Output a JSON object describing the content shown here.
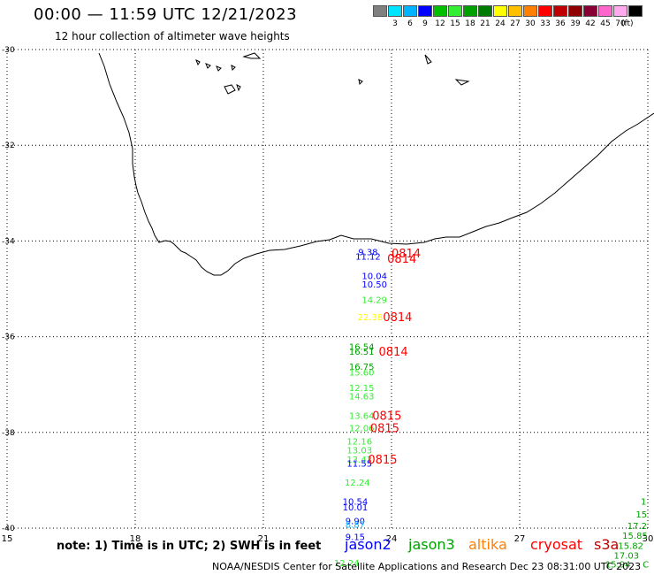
{
  "header": {
    "title": "00:00 — 11:59 UTC 12/21/2023",
    "subtitle": "12 hour collection of altimeter wave heights"
  },
  "legend": {
    "unit": "(ft)",
    "bins": [
      {
        "label": "",
        "color": "#808080"
      },
      {
        "label": "3",
        "color": "#00e5ff"
      },
      {
        "label": "6",
        "color": "#00b4ff"
      },
      {
        "label": "9",
        "color": "#0000ff"
      },
      {
        "label": "12",
        "color": "#00c000"
      },
      {
        "label": "15",
        "color": "#33ee33"
      },
      {
        "label": "18",
        "color": "#00a000"
      },
      {
        "label": "21",
        "color": "#007a00"
      },
      {
        "label": "24",
        "color": "#ffff00"
      },
      {
        "label": "27",
        "color": "#ffc000"
      },
      {
        "label": "30",
        "color": "#ff8000"
      },
      {
        "label": "33",
        "color": "#ff0000"
      },
      {
        "label": "36",
        "color": "#c00000"
      },
      {
        "label": "39",
        "color": "#900000"
      },
      {
        "label": "42",
        "color": "#880033"
      },
      {
        "label": "45",
        "color": "#ff66cc"
      },
      {
        "label": "70",
        "color": "#ffaaee"
      },
      {
        "label": "",
        "color": "#000000"
      }
    ]
  },
  "map": {
    "lon_range": [
      15,
      30
    ],
    "lat_range": [
      -40,
      -30
    ],
    "lat_labels": [
      {
        "lat": -30,
        "text": "-30"
      },
      {
        "lat": -32,
        "text": "-32"
      },
      {
        "lat": -34,
        "text": "-34"
      },
      {
        "lat": -36,
        "text": "-36"
      },
      {
        "lat": -38,
        "text": "-38"
      },
      {
        "lat": -40,
        "text": "-40"
      }
    ],
    "lon_labels": [
      {
        "lon": 15,
        "text": "15"
      },
      {
        "lon": 18,
        "text": "18"
      },
      {
        "lon": 21,
        "text": "21"
      },
      {
        "lon": 24,
        "text": "24"
      },
      {
        "lon": 27,
        "text": "27"
      },
      {
        "lon": 30,
        "text": "30"
      }
    ],
    "observations": [
      {
        "lon": 23.45,
        "lat": -34.22,
        "text": "9.38",
        "color": "#0000ff"
      },
      {
        "lon": 23.45,
        "lat": -34.32,
        "text": "11.12",
        "color": "#0000ff"
      },
      {
        "lon": 23.6,
        "lat": -34.72,
        "text": "10.04",
        "color": "#0000ff"
      },
      {
        "lon": 23.6,
        "lat": -34.9,
        "text": "10.50",
        "color": "#0000ff"
      },
      {
        "lon": 23.6,
        "lat": -35.22,
        "text": "14.29",
        "color": "#33ee33"
      },
      {
        "lon": 23.5,
        "lat": -35.58,
        "text": "22.38",
        "color": "#ffff00"
      },
      {
        "lon": 23.3,
        "lat": -36.2,
        "text": "16.54",
        "color": "#00a000"
      },
      {
        "lon": 23.3,
        "lat": -36.3,
        "text": "16.51",
        "color": "#00a000"
      },
      {
        "lon": 23.3,
        "lat": -36.62,
        "text": "16.75",
        "color": "#00a000"
      },
      {
        "lon": 23.3,
        "lat": -36.74,
        "text": "15.60",
        "color": "#33ee33"
      },
      {
        "lon": 23.3,
        "lat": -37.06,
        "text": "12.15",
        "color": "#33ee33"
      },
      {
        "lon": 23.3,
        "lat": -37.24,
        "text": "14.63",
        "color": "#33ee33"
      },
      {
        "lon": 23.3,
        "lat": -37.64,
        "text": "13.64",
        "color": "#33ee33"
      },
      {
        "lon": 23.3,
        "lat": -37.9,
        "text": "12.06",
        "color": "#33ee33"
      },
      {
        "lon": 23.25,
        "lat": -38.18,
        "text": "12.16",
        "color": "#33ee33"
      },
      {
        "lon": 23.25,
        "lat": -38.36,
        "text": "13.03",
        "color": "#33ee33"
      },
      {
        "lon": 23.25,
        "lat": -38.56,
        "text": "13.43",
        "color": "#33ee33"
      },
      {
        "lon": 23.25,
        "lat": -38.64,
        "text": "11.55",
        "color": "#0000ff"
      },
      {
        "lon": 23.2,
        "lat": -39.04,
        "text": "12.24",
        "color": "#33ee33"
      },
      {
        "lon": 23.15,
        "lat": -39.44,
        "text": "10.54",
        "color": "#0000ff"
      },
      {
        "lon": 23.15,
        "lat": -39.56,
        "text": "10.01",
        "color": "#0000ff"
      },
      {
        "lon": 23.15,
        "lat": -39.84,
        "text": "9.90",
        "color": "#0000ff"
      },
      {
        "lon": 23.15,
        "lat": -39.92,
        "text": "8.87",
        "color": "#00b4ff"
      },
      {
        "lon": 23.15,
        "lat": -40.18,
        "text": "9.15",
        "color": "#0000ff"
      },
      {
        "lon": 22.95,
        "lat": -40.72,
        "text": "12.24",
        "color": "#33ee33"
      },
      {
        "lon": 29.9,
        "lat": -39.44,
        "text": "1",
        "color": "#00a000"
      },
      {
        "lon": 29.85,
        "lat": -39.7,
        "text": "15",
        "color": "#00a000"
      },
      {
        "lon": 29.75,
        "lat": -39.94,
        "text": "17.2",
        "color": "#00a000"
      },
      {
        "lon": 29.7,
        "lat": -40.15,
        "text": "15.85",
        "color": "#00a000"
      },
      {
        "lon": 29.6,
        "lat": -40.36,
        "text": "15.82",
        "color": "#00a000"
      },
      {
        "lon": 29.5,
        "lat": -40.56,
        "text": "17.03",
        "color": "#00a000"
      },
      {
        "lon": 29.3,
        "lat": -40.75,
        "text": "15.94",
        "color": "#00a000"
      },
      {
        "lon": 29.95,
        "lat": -40.75,
        "text": "C",
        "color": "#00a000"
      }
    ],
    "time_labels": [
      {
        "lon": 24.0,
        "lat": -34.25,
        "text": "0814",
        "color": "#ff0000"
      },
      {
        "lon": 23.9,
        "lat": -34.36,
        "text": "0814",
        "color": "#ff0000"
      },
      {
        "lon": 23.8,
        "lat": -35.58,
        "text": "0814",
        "color": "#ff0000"
      },
      {
        "lon": 23.7,
        "lat": -36.3,
        "text": "0814",
        "color": "#ff0000"
      },
      {
        "lon": 23.55,
        "lat": -37.64,
        "text": "0815",
        "color": "#ff0000"
      },
      {
        "lon": 23.5,
        "lat": -37.9,
        "text": "0815",
        "color": "#ff0000"
      },
      {
        "lon": 23.45,
        "lat": -38.56,
        "text": "0815",
        "color": "#ff0000"
      }
    ]
  },
  "footer": {
    "note": "note: 1) Time is in UTC; 2) SWH is in feet",
    "satellites": [
      {
        "name": "jason2",
        "color": "#0000ff"
      },
      {
        "name": "jason3",
        "color": "#00a000"
      },
      {
        "name": "altika",
        "color": "#ff8000"
      },
      {
        "name": "cryosat",
        "color": "#ff0000"
      },
      {
        "name": "s3a",
        "color": "#c00000"
      }
    ],
    "credit": "NOAA/NESDIS Center for Satellite Applications and Research    Dec 23 08:31:00 UTC 2023"
  }
}
